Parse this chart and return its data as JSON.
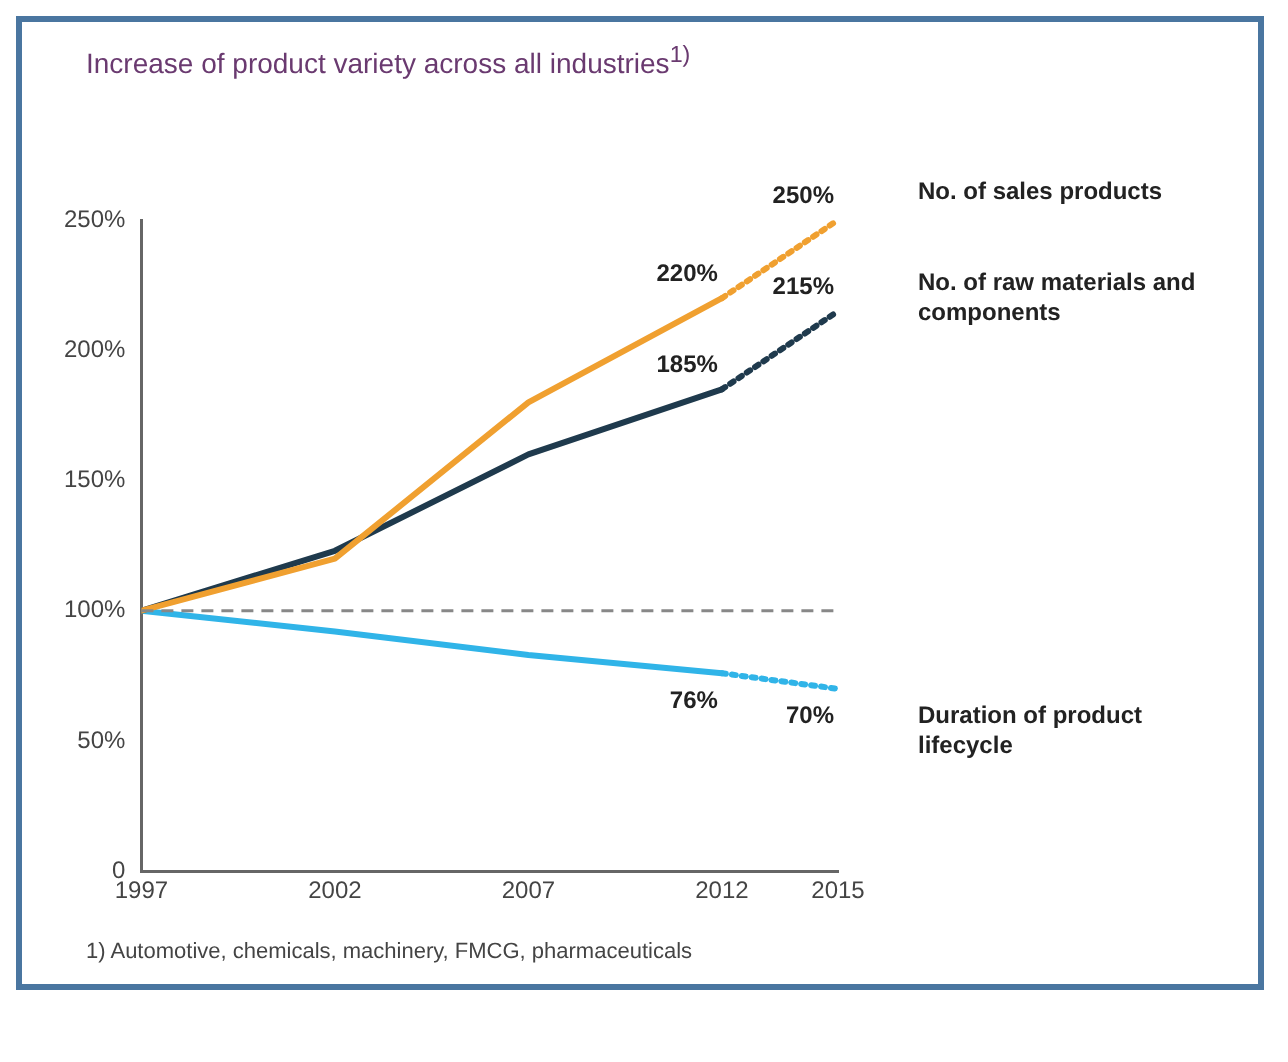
{
  "chart_data": {
    "type": "line",
    "title": "Increase of product variety across all industries$^{1)}$",
    "x": [
      1997,
      2002,
      2007,
      2012,
      2015
    ],
    "series": [
      {
        "name": "No. of sales products",
        "color": "#f0a030",
        "values": [
          100,
          120,
          180,
          220,
          null
        ],
        "value_labels": [
          null,
          null,
          null,
          "220%",
          null
        ],
        "line_style": "solid"
      },
      {
        "color": "#f0a030",
        "values": [
          null,
          null,
          null,
          220,
          250
        ],
        "value_labels": [
          null,
          null,
          null,
          null,
          "250%"
        ],
        "line_style": "dotted"
      },
      {
        "name": "No. of raw materials and components",
        "color": "#1f3a4d",
        "values": [
          100,
          123,
          160,
          185,
          null
        ],
        "value_labels": [
          null,
          null,
          null,
          "185%",
          null
        ],
        "line_style": "solid"
      },
      {
        "color": "#1f3a4d",
        "values": [
          null,
          null,
          null,
          185,
          215
        ],
        "value_labels": [
          null,
          null,
          null,
          null,
          "215%"
        ],
        "line_style": "dotted"
      },
      {
        "name": "Duration of product lifecycle",
        "color": "#30b4e8",
        "values": [
          100,
          92,
          83,
          76,
          null
        ],
        "value_labels": [
          null,
          null,
          null,
          "76%",
          null
        ],
        "line_style": "solid"
      },
      {
        "color": "#30b4e8",
        "values": [
          null,
          null,
          null,
          76,
          70
        ],
        "value_labels": [
          null,
          null,
          null,
          null,
          "70%"
        ],
        "line_style": "dotted"
      }
    ],
    "xlim": [
      1997,
      2015
    ],
    "xticks": [
      1997,
      2002,
      2007,
      2012,
      2015
    ],
    "ylim": [
      0,
      250
    ],
    "yticks": [
      {
        "value": 0,
        "label": "0"
      },
      {
        "value": 50,
        "label": "50%"
      },
      {
        "value": 100,
        "label": "100%"
      },
      {
        "value": 150,
        "label": "150%"
      },
      {
        "value": 200,
        "label": "200%"
      },
      {
        "value": 250,
        "label": "250%"
      }
    ],
    "ref_lines": [
      {
        "axis": "y",
        "value": 100,
        "color": "#888888",
        "line_style": "dashed"
      }
    ],
    "grid": false,
    "legend": false,
    "marker": "none",
    "annotations": [
      "1) Automotive, chemicals, machinery, FMCG, pharmaceuticals"
    ]
  }
}
